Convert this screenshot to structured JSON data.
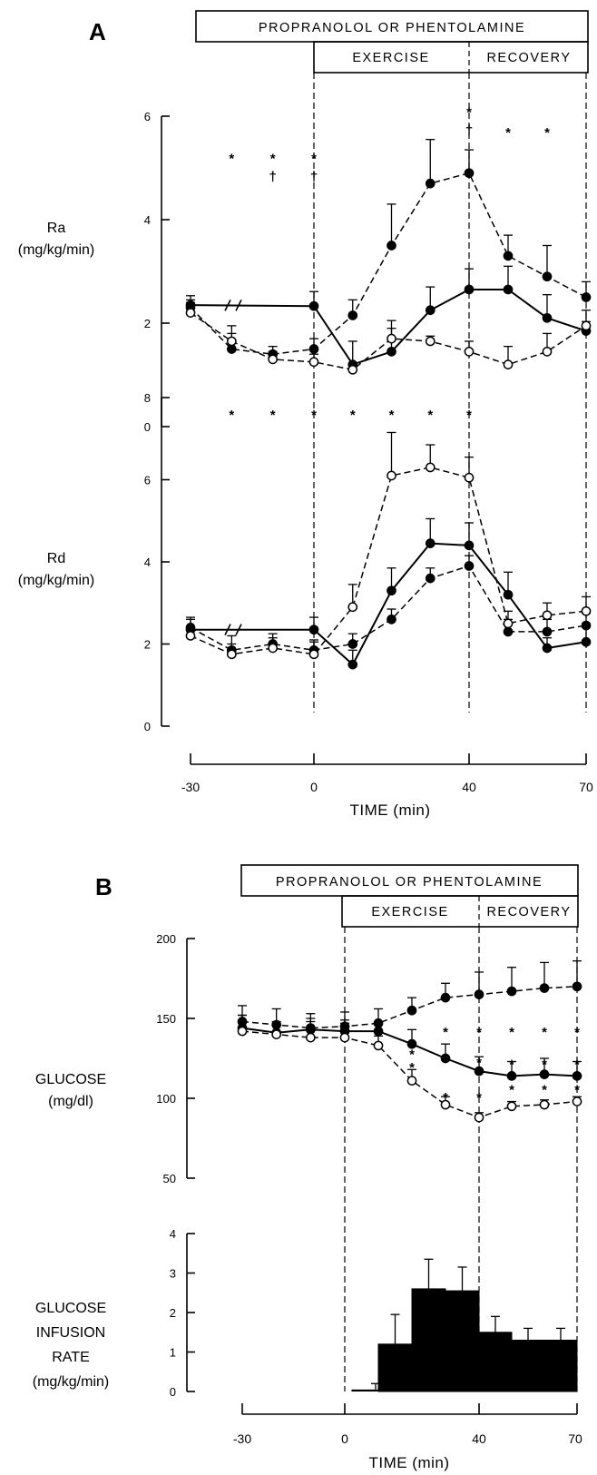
{
  "panel_a": {
    "letter": "A",
    "header": {
      "drug": "PROPRANOLOL OR PHENTOLAMINE",
      "exercise": "EXERCISE",
      "recovery": "RECOVERY"
    },
    "x_label": "TIME (min)",
    "x_ticks": [
      "-30",
      "0",
      "40",
      "70"
    ]
  },
  "panel_b": {
    "letter": "B",
    "header": {
      "drug": "PROPRANOLOL OR PHENTOLAMINE",
      "exercise": "EXERCISE",
      "recovery": "RECOVERY"
    },
    "x_label": "TIME (min)",
    "x_ticks": [
      "-30",
      "0",
      "40",
      "70"
    ]
  },
  "chart_data": [
    {
      "type": "line",
      "panel": "A",
      "ylabel": "Ra\n(mg/kg/min)",
      "xlabel": "",
      "ylim": [
        0,
        6
      ],
      "y_ticks": [
        "0",
        "2",
        "4",
        "6"
      ],
      "x": [
        -30,
        -20,
        -10,
        0,
        10,
        20,
        30,
        40,
        50,
        60,
        70
      ],
      "series": [
        {
          "style": "solid-filled",
          "values": [
            2.35,
            null,
            null,
            2.33,
            1.2,
            1.45,
            2.25,
            2.65,
            2.65,
            2.1,
            1.85
          ],
          "errors": [
            0.18,
            null,
            null,
            0.28,
            0.45,
            0.6,
            0.45,
            0.4,
            0.45,
            0.45,
            0.18
          ]
        },
        {
          "style": "dashed-filled",
          "values": [
            2.3,
            1.5,
            1.4,
            1.5,
            2.15,
            3.5,
            4.7,
            4.9,
            3.3,
            2.9,
            2.5
          ],
          "errors": [
            0.15,
            0.3,
            0.15,
            0.2,
            0.3,
            0.8,
            0.85,
            0.45,
            0.4,
            0.6,
            0.3
          ]
        },
        {
          "style": "dashed-open",
          "values": [
            2.2,
            1.65,
            1.3,
            1.25,
            1.1,
            1.7,
            1.65,
            1.45,
            1.2,
            1.45,
            1.95
          ],
          "errors": [
            0.2,
            0.3,
            0.15,
            0.15,
            0.1,
            0.2,
            0.1,
            0.2,
            0.35,
            0.35,
            0.3
          ]
        }
      ],
      "asterisk_marks": [
        {
          "x": -20,
          "y": 5.2,
          "text": "*"
        },
        {
          "x": -10,
          "y": 5.2,
          "text": "*"
        },
        {
          "x": -10,
          "y": 4.85,
          "text": "†"
        },
        {
          "x": 0,
          "y": 5.2,
          "text": "*"
        },
        {
          "x": 0,
          "y": 4.85,
          "text": "†"
        },
        {
          "x": 40,
          "y": 6.1,
          "text": "*"
        },
        {
          "x": 40,
          "y": 5.75,
          "text": "†"
        },
        {
          "x": 50,
          "y": 5.7,
          "text": "*"
        },
        {
          "x": 60,
          "y": 5.7,
          "text": "*"
        }
      ]
    },
    {
      "type": "line",
      "panel": "A",
      "ylabel": "Rd\n(mg/kg/min)",
      "xlabel": "TIME (min)",
      "ylim": [
        0,
        8
      ],
      "y_ticks": [
        "0",
        "2",
        "4",
        "6",
        "8"
      ],
      "x": [
        -30,
        -20,
        -10,
        0,
        10,
        20,
        30,
        40,
        50,
        60,
        70
      ],
      "series": [
        {
          "style": "solid-filled",
          "values": [
            2.35,
            null,
            null,
            2.35,
            1.5,
            3.3,
            4.45,
            4.4,
            3.2,
            1.9,
            2.05
          ],
          "errors": [
            0.25,
            null,
            null,
            0.3,
            0.35,
            0.55,
            0.6,
            0.55,
            0.55,
            0.25,
            0.45
          ]
        },
        {
          "style": "dashed-filled",
          "values": [
            2.4,
            1.85,
            2.0,
            1.85,
            2.0,
            2.6,
            3.6,
            3.9,
            2.3,
            2.3,
            2.45
          ],
          "errors": [
            0.25,
            0.35,
            0.25,
            0.25,
            0.25,
            0.25,
            0.25,
            0.25,
            0.3,
            0.3,
            0.3
          ]
        },
        {
          "style": "dashed-open",
          "values": [
            2.2,
            1.75,
            1.9,
            1.75,
            2.9,
            6.1,
            6.3,
            6.05,
            2.5,
            2.7,
            2.8
          ],
          "errors": [
            0.2,
            0.25,
            0.25,
            0.3,
            0.55,
            1.05,
            0.55,
            0.5,
            0.3,
            0.3,
            0.35
          ]
        }
      ],
      "asterisk_marks": [
        {
          "x": -20,
          "y": 7.6,
          "text": "*"
        },
        {
          "x": -10,
          "y": 7.6,
          "text": "*"
        },
        {
          "x": 0,
          "y": 7.6,
          "text": "*"
        },
        {
          "x": 10,
          "y": 7.6,
          "text": "*"
        },
        {
          "x": 20,
          "y": 7.6,
          "text": "*"
        },
        {
          "x": 30,
          "y": 7.6,
          "text": "*"
        },
        {
          "x": 40,
          "y": 7.6,
          "text": "*"
        }
      ]
    },
    {
      "type": "line",
      "panel": "B",
      "ylabel": "GLUCOSE\n(mg/dl)",
      "xlabel": "",
      "ylim": [
        50,
        200
      ],
      "y_ticks": [
        "50",
        "100",
        "150",
        "200"
      ],
      "x": [
        -30,
        -20,
        -10,
        0,
        10,
        20,
        30,
        40,
        50,
        60,
        70
      ],
      "series": [
        {
          "style": "solid-filled",
          "values": [
            144,
            141,
            143,
            142,
            142,
            134,
            125,
            117,
            114,
            115,
            114
          ],
          "errors": [
            8,
            7,
            7,
            7,
            4,
            9,
            9,
            9,
            9,
            10,
            9
          ]
        },
        {
          "style": "dashed-filled",
          "values": [
            148,
            146,
            144,
            145,
            147,
            155,
            163,
            165,
            167,
            169,
            170
          ],
          "errors": [
            10,
            10,
            9,
            9,
            9,
            8,
            9,
            14,
            15,
            16,
            16
          ]
        },
        {
          "style": "dashed-open",
          "values": [
            142,
            140,
            138,
            138,
            133,
            111,
            96,
            88,
            95,
            96,
            98
          ],
          "errors": [
            10,
            7,
            10,
            9,
            6,
            7,
            5,
            3,
            3,
            3,
            3
          ]
        }
      ],
      "asterisk_marks": [
        {
          "x": 30,
          "y": 142,
          "text": "*"
        },
        {
          "x": 40,
          "y": 142,
          "text": "*"
        },
        {
          "x": 50,
          "y": 142,
          "text": "*"
        },
        {
          "x": 60,
          "y": 142,
          "text": "*"
        },
        {
          "x": 70,
          "y": 142,
          "text": "*"
        },
        {
          "x": 20,
          "y": 120,
          "text": "*"
        },
        {
          "x": 30,
          "y": 101,
          "text": "*"
        },
        {
          "x": 40,
          "y": 101,
          "text": "*"
        },
        {
          "x": 50,
          "y": 106,
          "text": "*"
        },
        {
          "x": 60,
          "y": 106,
          "text": "*"
        },
        {
          "x": 70,
          "y": 106,
          "text": "*"
        },
        {
          "x": 20,
          "y": 128,
          "text": "*"
        },
        {
          "x": 40,
          "y": 123,
          "text": "*"
        },
        {
          "x": 50,
          "y": 122,
          "text": "*"
        },
        {
          "x": 60,
          "y": 122,
          "text": "*"
        },
        {
          "x": 70,
          "y": 122,
          "text": "*"
        }
      ]
    },
    {
      "type": "bar",
      "panel": "B",
      "ylabel": "GLUCOSE\nINFUSION\nRATE\n(mg/kg/min)",
      "xlabel": "TIME (min)",
      "ylim": [
        0,
        4
      ],
      "y_ticks": [
        "0",
        "1",
        "2",
        "3",
        "4"
      ],
      "x_bins": [
        [
          10,
          20
        ],
        [
          20,
          30
        ],
        [
          30,
          40
        ],
        [
          40,
          50
        ],
        [
          50,
          60
        ],
        [
          60,
          70
        ]
      ],
      "values": [
        1.2,
        2.6,
        2.55,
        1.5,
        1.3,
        1.3
      ],
      "errors": [
        0.75,
        0.75,
        0.6,
        0.4,
        0.3,
        0.3
      ],
      "pre_bar": {
        "x": [
          2,
          10
        ],
        "value": 0.05,
        "error": 0.15
      }
    }
  ]
}
